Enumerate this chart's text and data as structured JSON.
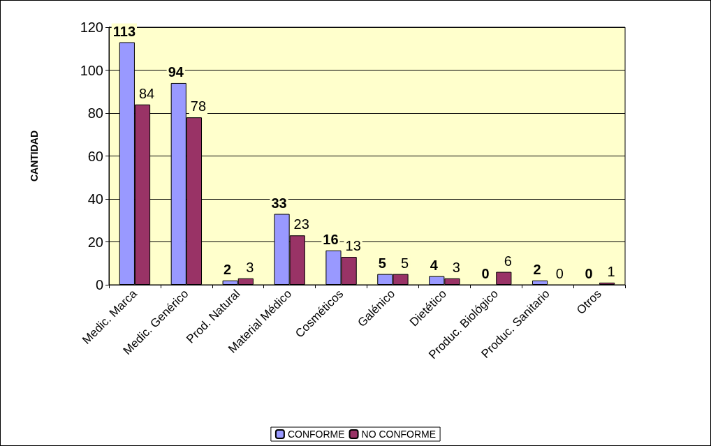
{
  "chart_data": {
    "type": "bar",
    "ylabel": "CANTIDAD",
    "categories": [
      "Medic. Marca",
      "Medic. Genérico",
      "Prod. Natural",
      "Material Médico",
      "Cosméticos",
      "Galénico",
      "Dietético",
      "Produc. Biológico",
      "Produc. Sanitario",
      "Otros"
    ],
    "series": [
      {
        "name": "CONFORME",
        "color": "#9999ff",
        "values": [
          113,
          94,
          2,
          33,
          16,
          5,
          4,
          0,
          2,
          0
        ]
      },
      {
        "name": "NO CONFORME",
        "color": "#993366",
        "values": [
          84,
          78,
          3,
          23,
          13,
          5,
          3,
          6,
          0,
          1
        ]
      }
    ],
    "ylim": [
      0,
      120
    ],
    "yticks": [
      0,
      20,
      40,
      60,
      80,
      100,
      120
    ],
    "grid": "y",
    "legend": "bottom",
    "data_labels": true
  }
}
